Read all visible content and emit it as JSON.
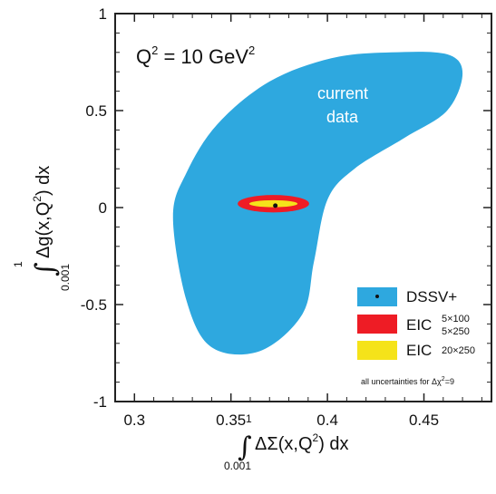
{
  "chart_data": {
    "type": "scatter",
    "title": "",
    "title_parts": {
      "q": "Q",
      "q_sup": "2",
      "eq": " = 10 GeV",
      "unit_sup": "2"
    },
    "xlabel_parts": {
      "integral": "∫",
      "upper": "1",
      "lower": "0.001",
      "body": "ΔΣ(x,Q",
      "sup": "2",
      "tail": ") dx"
    },
    "ylabel_parts": {
      "integral": "∫",
      "upper": "1",
      "lower": "0.001",
      "body": "Δg(x,Q",
      "sup": "2",
      "tail": ") dx"
    },
    "xlim": [
      0.29,
      0.485
    ],
    "ylim": [
      -1,
      1
    ],
    "x_ticks": [
      0.3,
      0.35,
      0.4,
      0.45
    ],
    "x_tick_labels": [
      "0.3",
      "0.35",
      "0.4",
      "0.45"
    ],
    "y_ticks": [
      1,
      0.5,
      0,
      -0.5,
      -1
    ],
    "y_tick_labels": [
      "1",
      "0.5",
      "0",
      "-0.5",
      "-1"
    ],
    "grid": false,
    "legend_position": "bottom-right",
    "annotations": {
      "current_data": [
        "current",
        "data"
      ]
    },
    "series": [
      {
        "name": "DSSV+",
        "kind": "region",
        "color": "#2ea8df",
        "outline": [
          [
            0.32,
            -0.05
          ],
          [
            0.327,
            0.18
          ],
          [
            0.343,
            0.43
          ],
          [
            0.37,
            0.65
          ],
          [
            0.402,
            0.77
          ],
          [
            0.433,
            0.8
          ],
          [
            0.462,
            0.79
          ],
          [
            0.47,
            0.69
          ],
          [
            0.462,
            0.5
          ],
          [
            0.44,
            0.36
          ],
          [
            0.414,
            0.2
          ],
          [
            0.4,
            0.04
          ],
          [
            0.393,
            -0.28
          ],
          [
            0.387,
            -0.55
          ],
          [
            0.365,
            -0.74
          ],
          [
            0.34,
            -0.72
          ],
          [
            0.327,
            -0.48
          ]
        ],
        "center": [
          0.373,
          0.01
        ]
      },
      {
        "name": "EIC",
        "label": "EIC",
        "label_top": "5×100",
        "label_bottom": "5×250",
        "kind": "ellipse",
        "color": "#ee1c25",
        "center": [
          0.372,
          0.02
        ],
        "rx": 0.0185,
        "ry": 0.045
      },
      {
        "name": "EIC",
        "label": "EIC",
        "label_sub": "20×250",
        "kind": "ellipse",
        "color": "#f5e31a",
        "center": [
          0.372,
          0.02
        ],
        "rx": 0.0125,
        "ry": 0.018
      }
    ],
    "note": {
      "text": "all uncertainties for Δχ",
      "sup": "2",
      "tail": "=9"
    }
  }
}
